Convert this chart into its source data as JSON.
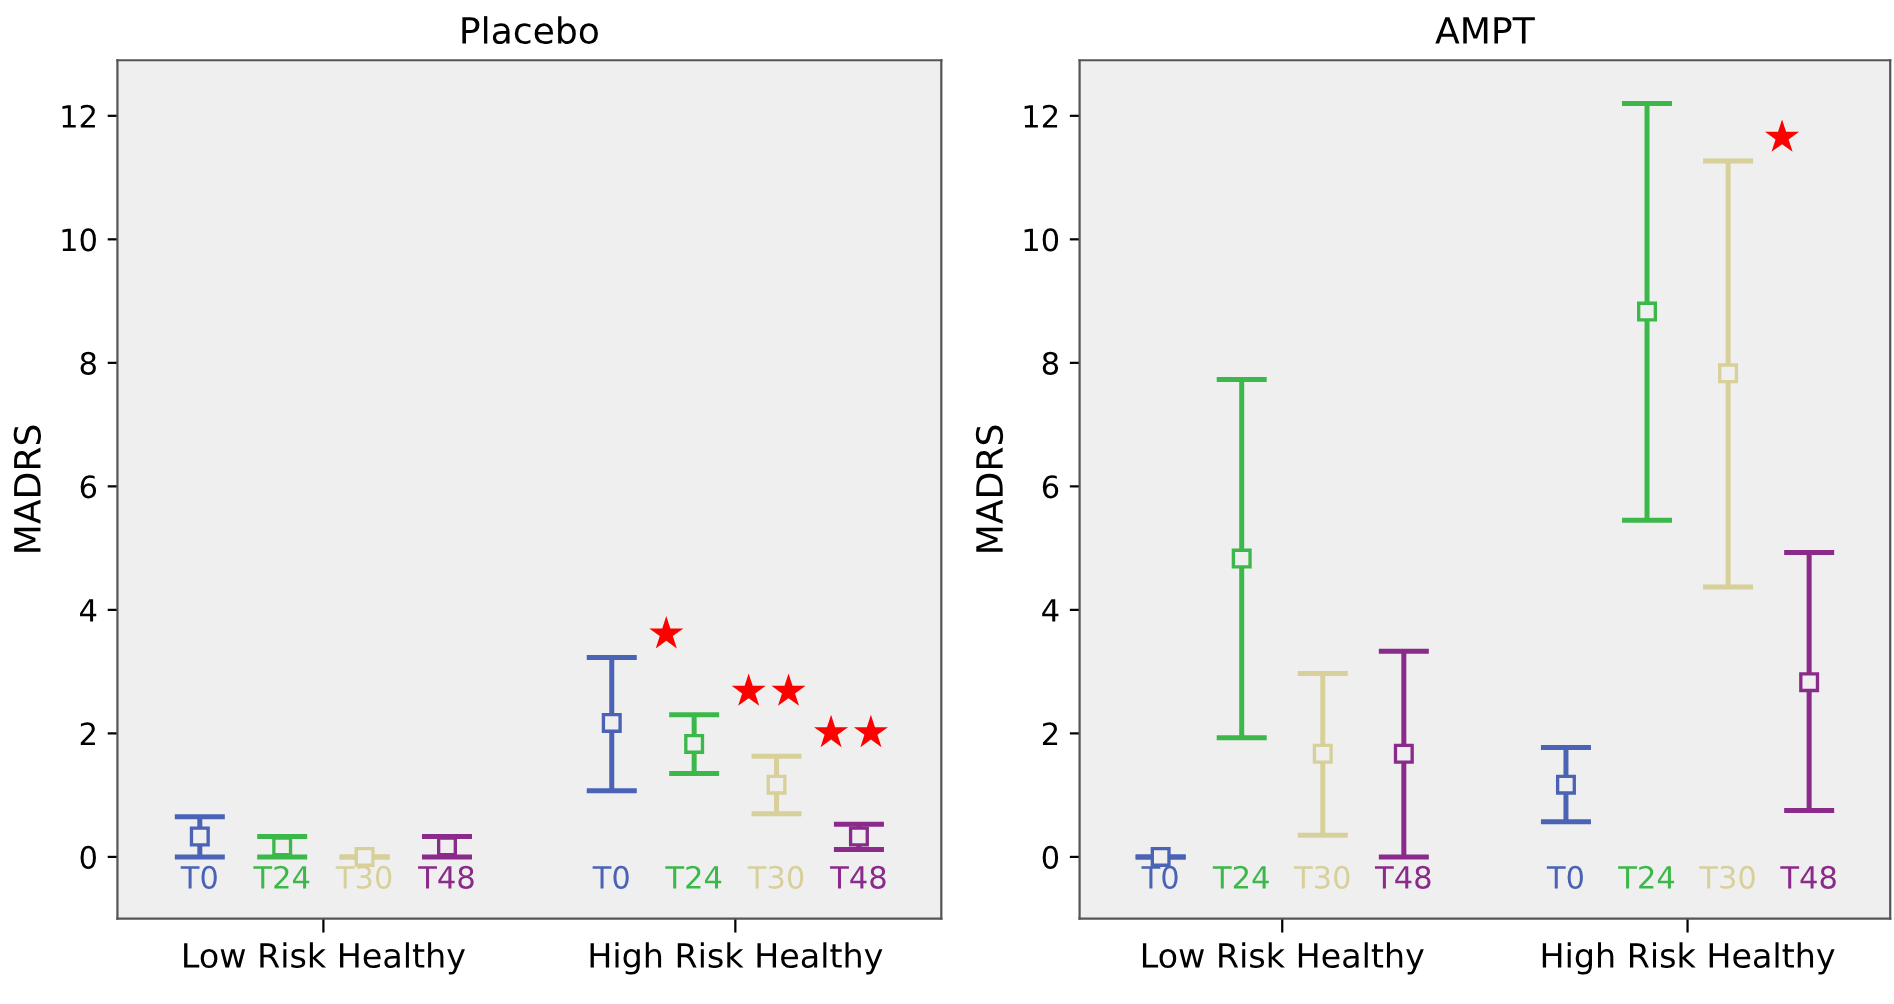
{
  "chart_data": [
    {
      "type": "scatter",
      "title": "Placebo",
      "ylabel": "MADRS",
      "categories": [
        "Low Risk Healthy",
        "High Risk Healthy"
      ],
      "ylim": [
        -1,
        12.9
      ],
      "yticks": [
        0,
        2,
        4,
        6,
        8,
        10,
        12
      ],
      "marker": "square",
      "grid": false,
      "legend": false,
      "series": [
        {
          "name": "T0",
          "color": "#4a63b5",
          "values": [
            0.33,
            2.17
          ],
          "errors": [
            [
              0,
              0.65
            ],
            [
              1.07,
              3.23
            ]
          ]
        },
        {
          "name": "T24",
          "color": "#3cb84a",
          "values": [
            0.17,
            1.83
          ],
          "errors": [
            [
              0,
              0.33
            ],
            [
              1.35,
              2.3
            ]
          ]
        },
        {
          "name": "T30",
          "color": "#d8d09a",
          "values": [
            0,
            1.17
          ],
          "errors": [
            [
              0,
              0
            ],
            [
              0.7,
              1.63
            ]
          ]
        },
        {
          "name": "T48",
          "color": "#8a2a8a",
          "values": [
            0.17,
            0.33
          ],
          "errors": [
            [
              0,
              0.33
            ],
            [
              0.12,
              0.53
            ]
          ]
        }
      ],
      "annotations": [
        "★",
        "★★",
        "★★"
      ]
    },
    {
      "type": "scatter",
      "title": "AMPT",
      "ylabel": "MADRS",
      "categories": [
        "Low Risk Healthy",
        "High Risk Healthy"
      ],
      "ylim": [
        -1,
        12.9
      ],
      "yticks": [
        0,
        2,
        4,
        6,
        8,
        10,
        12
      ],
      "marker": "square",
      "grid": false,
      "legend": false,
      "series": [
        {
          "name": "T0",
          "color": "#4a63b5",
          "values": [
            0,
            1.17
          ],
          "errors": [
            [
              0,
              0
            ],
            [
              0.57,
              1.77
            ]
          ]
        },
        {
          "name": "T24",
          "color": "#3cb84a",
          "values": [
            4.83,
            8.83
          ],
          "errors": [
            [
              1.93,
              7.73
            ],
            [
              5.45,
              12.2
            ]
          ]
        },
        {
          "name": "T30",
          "color": "#d8d09a",
          "values": [
            1.67,
            7.83
          ],
          "errors": [
            [
              0.35,
              2.97
            ],
            [
              4.37,
              11.27
            ]
          ]
        },
        {
          "name": "T48",
          "color": "#8a2a8a",
          "values": [
            1.67,
            2.83
          ],
          "errors": [
            [
              0,
              3.33
            ],
            [
              0.75,
              4.93
            ]
          ]
        }
      ],
      "annotations": [
        "★"
      ]
    }
  ]
}
